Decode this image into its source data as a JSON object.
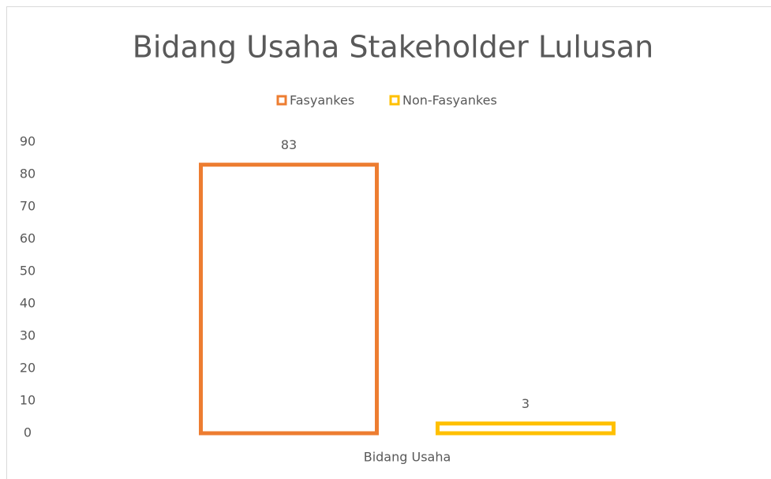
{
  "chart_data": {
    "type": "bar",
    "title": "Bidang Usaha Stakeholder Lulusan",
    "categories": [
      "Bidang Usaha"
    ],
    "series": [
      {
        "name": "Fasyankes",
        "color": "#ed7d31",
        "values": [
          83
        ]
      },
      {
        "name": "Non-Fasyankes",
        "color": "#ffc000",
        "values": [
          3
        ]
      }
    ],
    "ylim": [
      0,
      90
    ],
    "yticks": [
      0,
      10,
      20,
      30,
      40,
      50,
      60,
      70,
      80,
      90
    ],
    "grid": false,
    "legend": "top",
    "data_labels": true
  }
}
